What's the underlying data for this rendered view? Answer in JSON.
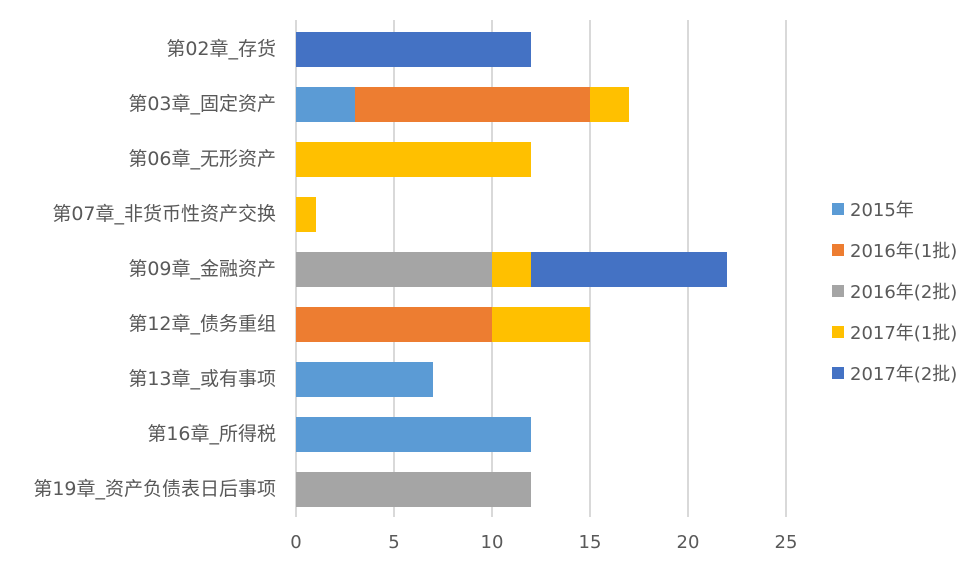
{
  "chart_data": {
    "type": "bar",
    "orientation": "horizontal",
    "stacked": true,
    "title": "",
    "xlabel": "",
    "ylabel": "",
    "xlim": [
      0,
      25
    ],
    "x_ticks": [
      "0",
      "5",
      "10",
      "15",
      "20",
      "25"
    ],
    "grid": true,
    "legend_position": "right",
    "categories": [
      "第02章_存货",
      "第03章_固定资产",
      "第06章_无形资产",
      "第07章_非货币性资产交换",
      "第09章_金融资产",
      "第12章_债务重组",
      "第13章_或有事项",
      "第16章_所得税",
      "第19章_资产负债表日后事项"
    ],
    "series": [
      {
        "name": "2015年",
        "color": "#5b9bd5",
        "values": [
          0,
          3,
          0,
          0,
          0,
          0,
          7,
          12,
          0
        ]
      },
      {
        "name": "2016年(1批)",
        "color": "#ed7d31",
        "values": [
          0,
          12,
          0,
          0,
          0,
          10,
          0,
          0,
          0
        ]
      },
      {
        "name": "2016年(2批)",
        "color": "#a5a5a5",
        "values": [
          0,
          0,
          0,
          0,
          10,
          0,
          0,
          0,
          12
        ]
      },
      {
        "name": "2017年(1批)",
        "color": "#ffc000",
        "values": [
          0,
          2,
          12,
          1,
          2,
          5,
          0,
          0,
          0
        ]
      },
      {
        "name": "2017年(2批)",
        "color": "#4472c4",
        "values": [
          12,
          0,
          0,
          0,
          10,
          0,
          0,
          0,
          0
        ]
      }
    ]
  }
}
